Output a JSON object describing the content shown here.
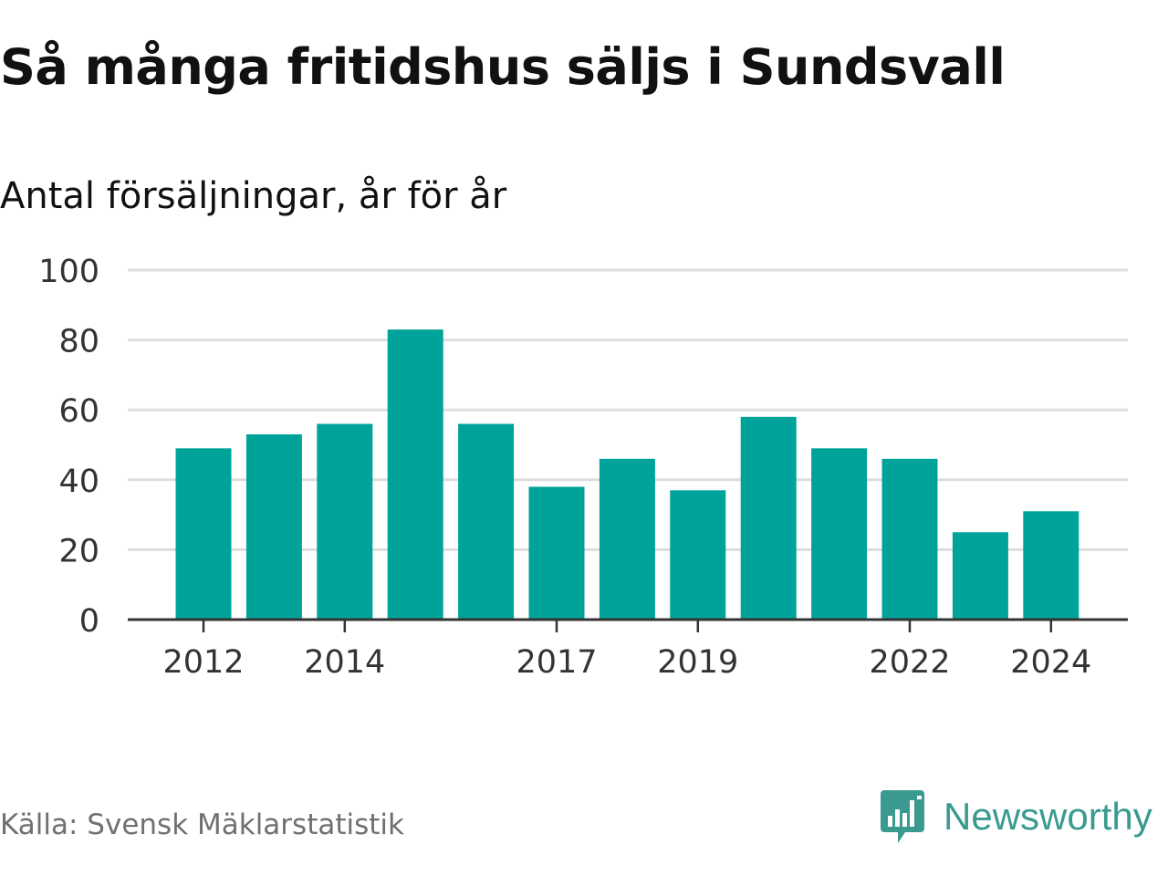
{
  "header": {
    "title": "Så många fritidshus säljs i Sundsvall",
    "subtitle": "Antal försäljningar, år för år"
  },
  "footer": {
    "source": "Källa: Svensk Mäklarstatistik",
    "brand": "Newsworthy",
    "brand_icon": "bar-chart-chat-icon",
    "brand_color": "#3a9a90"
  },
  "chart_data": {
    "type": "bar",
    "categories": [
      "2012",
      "2013",
      "2014",
      "2015",
      "2016",
      "2017",
      "2018",
      "2019",
      "2020",
      "2021",
      "2022",
      "2023",
      "2024"
    ],
    "values": [
      49,
      53,
      56,
      83,
      56,
      38,
      46,
      37,
      58,
      49,
      46,
      25,
      31
    ],
    "x_tick_labels": [
      "2012",
      "2014",
      "2017",
      "2019",
      "2022",
      "2024"
    ],
    "y_ticks": [
      0,
      20,
      40,
      60,
      80,
      100
    ],
    "ylim": [
      0,
      100
    ],
    "grid": true,
    "bar_color": "#00a39a",
    "title": "Så många fritidshus säljs i Sundsvall",
    "subtitle": "Antal försäljningar, år för år",
    "xlabel": "",
    "ylabel": ""
  }
}
